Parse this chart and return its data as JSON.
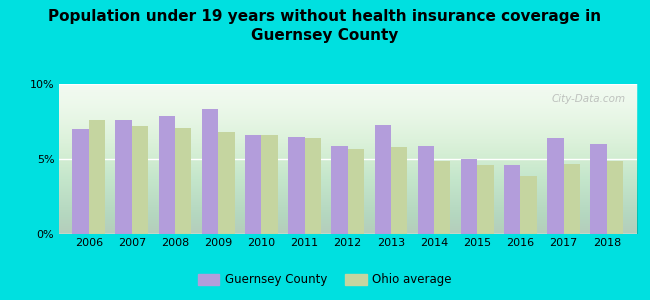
{
  "title": "Population under 19 years without health insurance coverage in\nGuernsey County",
  "years": [
    2006,
    2007,
    2008,
    2009,
    2010,
    2011,
    2012,
    2013,
    2014,
    2015,
    2016,
    2017,
    2018
  ],
  "guernsey": [
    7.0,
    7.6,
    7.9,
    8.3,
    6.6,
    6.5,
    5.9,
    7.3,
    5.9,
    5.0,
    4.6,
    6.4,
    6.0
  ],
  "ohio": [
    7.6,
    7.2,
    7.1,
    6.8,
    6.6,
    6.4,
    5.7,
    5.8,
    4.9,
    4.6,
    3.9,
    4.7,
    4.9
  ],
  "guernsey_color": "#b39ddb",
  "ohio_color": "#c5d5a0",
  "background_outer": "#00e0e0",
  "ylim": [
    0,
    10
  ],
  "yticks": [
    0,
    5,
    10
  ],
  "ytick_labels": [
    "0%",
    "5%",
    "10%"
  ],
  "bar_width": 0.38,
  "title_fontsize": 11,
  "legend_labels": [
    "Guernsey County",
    "Ohio average"
  ],
  "watermark": "City-Data.com"
}
